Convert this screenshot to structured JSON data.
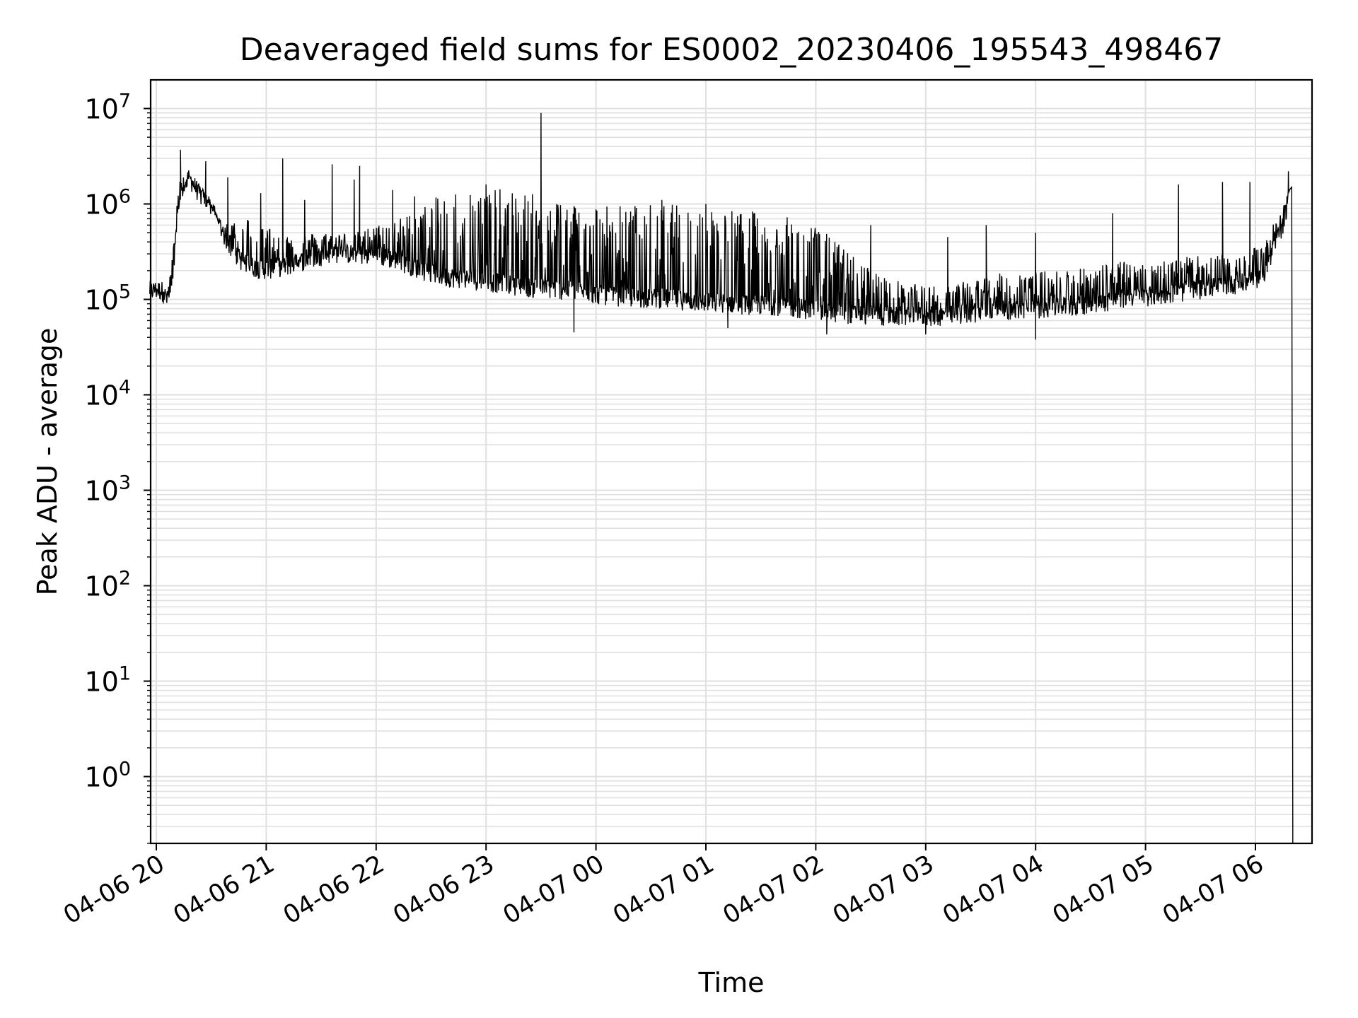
{
  "chart_data": {
    "type": "line",
    "title": "Deaveraged field sums for ES0002_20230406_195543_498467",
    "xlabel": "Time",
    "ylabel": "Peak ADU - average",
    "yscale": "log",
    "ylim_exponent": [
      -0.7,
      7.3
    ],
    "grid": true,
    "legend": "none",
    "colors": {
      "line": "#000000",
      "grid": "#e0e0e0",
      "axes": "#000000"
    },
    "x_ticks": [
      "04-06 20",
      "04-06 21",
      "04-06 22",
      "04-06 23",
      "04-07 00",
      "04-07 01",
      "04-07 02",
      "04-07 03",
      "04-07 04",
      "04-07 05",
      "04-07 06"
    ],
    "y_ticks": [
      {
        "exp": 0,
        "label": "0"
      },
      {
        "exp": 1,
        "label": "1"
      },
      {
        "exp": 2,
        "label": "2"
      },
      {
        "exp": 3,
        "label": "3"
      },
      {
        "exp": 4,
        "label": "4"
      },
      {
        "exp": 5,
        "label": "5"
      },
      {
        "exp": 6,
        "label": "6"
      },
      {
        "exp": 7,
        "label": "7"
      }
    ],
    "y_tick_base": "10",
    "series": [
      {
        "x_hours_after_2000": [
          -0.06,
          0.05,
          0.1,
          0.15,
          0.2,
          0.3,
          0.4,
          0.5,
          0.6,
          0.7,
          0.8,
          0.9,
          1.0,
          1.2,
          1.4,
          1.6,
          1.8,
          2.0,
          2.2,
          2.4,
          2.6,
          2.8,
          3.0,
          3.2,
          3.4,
          3.6,
          3.8,
          4.0,
          4.2,
          4.4,
          4.6,
          4.8,
          5.0,
          5.2,
          5.4,
          5.6,
          5.8,
          6.0,
          6.2,
          6.4,
          6.6,
          6.8,
          7.0,
          7.2,
          7.4,
          7.6,
          7.8,
          8.0,
          8.2,
          8.4,
          8.6,
          8.8,
          9.0,
          9.2,
          9.4,
          9.6,
          9.8,
          10.0,
          10.1,
          10.2,
          10.25,
          10.3,
          10.33,
          10.34
        ],
        "baseline": [
          120000,
          120000,
          95000,
          130000,
          1000000,
          1800000,
          1200000,
          900000,
          500000,
          300000,
          230000,
          210000,
          200000,
          220000,
          260000,
          300000,
          290000,
          280000,
          250000,
          200000,
          170000,
          160000,
          150000,
          140000,
          130000,
          125000,
          120000,
          110000,
          105000,
          100000,
          100000,
          95000,
          90000,
          90000,
          85000,
          85000,
          80000,
          75000,
          70000,
          68000,
          65000,
          65000,
          65000,
          65000,
          70000,
          75000,
          75000,
          78000,
          80000,
          85000,
          90000,
          100000,
          105000,
          110000,
          120000,
          130000,
          140000,
          150000,
          200000,
          400000,
          600000,
          1100000,
          1500000,
          0.3
        ],
        "band_high": [
          140000,
          140000,
          120000,
          300000,
          1900000,
          2000000,
          1500000,
          1100000,
          600000,
          700000,
          800000,
          700000,
          600000,
          500000,
          500000,
          500000,
          500000,
          600000,
          700000,
          900000,
          1300000,
          1500000,
          1500000,
          1400000,
          1300000,
          1200000,
          1100000,
          1050000,
          1000000,
          1000000,
          1000000,
          1000000,
          950000,
          900000,
          850000,
          800000,
          700000,
          600000,
          400000,
          250000,
          180000,
          150000,
          140000,
          140000,
          160000,
          180000,
          200000,
          200000,
          200000,
          220000,
          240000,
          250000,
          260000,
          270000,
          280000,
          300000,
          300000,
          350000,
          500000,
          700000,
          900000,
          1500000,
          2200000,
          0.3
        ],
        "spikes": [
          {
            "x": 0.22,
            "y": 3700000
          },
          {
            "x": 0.45,
            "y": 2800000
          },
          {
            "x": 0.65,
            "y": 1900000
          },
          {
            "x": 0.95,
            "y": 1300000
          },
          {
            "x": 1.15,
            "y": 3000000
          },
          {
            "x": 1.35,
            "y": 1100000
          },
          {
            "x": 1.6,
            "y": 2600000
          },
          {
            "x": 1.8,
            "y": 1800000
          },
          {
            "x": 1.85,
            "y": 2500000
          },
          {
            "x": 2.15,
            "y": 1400000
          },
          {
            "x": 2.35,
            "y": 1200000
          },
          {
            "x": 3.0,
            "y": 1600000
          },
          {
            "x": 3.5,
            "y": 9000000
          },
          {
            "x": 4.6,
            "y": 1100000
          },
          {
            "x": 5.0,
            "y": 1000000
          },
          {
            "x": 6.5,
            "y": 600000
          },
          {
            "x": 7.2,
            "y": 450000
          },
          {
            "x": 7.55,
            "y": 600000
          },
          {
            "x": 8.0,
            "y": 500000
          },
          {
            "x": 8.7,
            "y": 800000
          },
          {
            "x": 9.3,
            "y": 1600000
          },
          {
            "x": 9.7,
            "y": 1700000
          },
          {
            "x": 9.95,
            "y": 1700000
          },
          {
            "x": 10.3,
            "y": 2200000
          }
        ],
        "dips": [
          {
            "x": 3.8,
            "y": 45000
          },
          {
            "x": 5.2,
            "y": 50000
          },
          {
            "x": 6.1,
            "y": 43000
          },
          {
            "x": 7.0,
            "y": 43000
          },
          {
            "x": 8.0,
            "y": 38000
          }
        ]
      }
    ]
  }
}
